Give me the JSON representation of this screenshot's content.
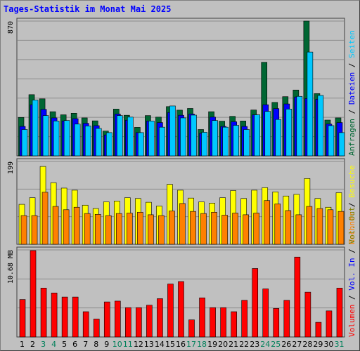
{
  "title": "Tages-Statistik im Monat Mai 2025",
  "chart_data": [
    {
      "type": "bar",
      "panel": "top",
      "ymax_label": "870",
      "ylim": [
        0,
        870
      ],
      "axis_labels": [
        {
          "text": "Anfragen",
          "color": "#006633"
        },
        {
          "text": " / ",
          "color": "#000000"
        },
        {
          "text": "Dateien",
          "color": "#0000ff"
        },
        {
          "text": " / ",
          "color": "#000000"
        },
        {
          "text": "Seiten",
          "color": "#00c8ff"
        }
      ],
      "series": [
        {
          "name": "Anfragen",
          "color": "#006633",
          "values": [
            248,
            395,
            368,
            285,
            265,
            275,
            245,
            226,
            160,
            302,
            262,
            184,
            260,
            250,
            318,
            295,
            306,
            170,
            285,
            224,
            255,
            225,
            296,
            604,
            345,
            382,
            425,
            870,
            402,
            231,
            245
          ]
        },
        {
          "name": "Dateien",
          "color": "#0000ff",
          "values": [
            190,
            330,
            300,
            245,
            225,
            240,
            210,
            195,
            135,
            270,
            230,
            150,
            225,
            215,
            280,
            262,
            270,
            145,
            250,
            190,
            220,
            190,
            265,
            330,
            305,
            335,
            380,
            370,
            365,
            205,
            215
          ]
        },
        {
          "name": "Seiten",
          "color": "#00c8ff",
          "values": [
            170,
            360,
            260,
            225,
            228,
            205,
            193,
            177,
            150,
            260,
            250,
            150,
            225,
            185,
            322,
            245,
            263,
            152,
            228,
            185,
            197,
            170,
            265,
            287,
            235,
            302,
            384,
            670,
            390,
            195,
            150
          ]
        }
      ]
    },
    {
      "type": "bar",
      "panel": "middle",
      "ymax_label": "199",
      "ylim": [
        0,
        199
      ],
      "axis_labels": [
        {
          "text": "Rechner",
          "color": "#ff8000"
        },
        {
          "text": " / ",
          "color": "#000000"
        },
        {
          "text": "Besuche",
          "color": "#ffff00"
        }
      ],
      "series": [
        {
          "name": "Besuche",
          "color": "#ffff00",
          "values": [
            96,
            112,
            187,
            148,
            135,
            130,
            94,
            86,
            102,
            104,
            112,
            110,
            101,
            92,
            144,
            130,
            111,
            102,
            99,
            112,
            129,
            110,
            130,
            136,
            126,
            116,
            120,
            158,
            110,
            89,
            124
          ]
        },
        {
          "name": "Rechner",
          "color": "#ff8000",
          "values": [
            69,
            69,
            125,
            91,
            83,
            89,
            74,
            72,
            69,
            74,
            75,
            77,
            71,
            69,
            80,
            98,
            79,
            74,
            77,
            70,
            75,
            71,
            75,
            105,
            97,
            81,
            71,
            91,
            86,
            83,
            79
          ]
        }
      ]
    },
    {
      "type": "bar",
      "panel": "bottom",
      "ymax_label": "10.68 MB",
      "ylim": [
        0,
        10.68
      ],
      "axis_labels": [
        {
          "text": "Volumen",
          "color": "#ff0000"
        },
        {
          "text": " / ",
          "color": "#000000"
        },
        {
          "text": "Vol. In",
          "color": "#0000ff"
        },
        {
          "text": " / ",
          "color": "#000000"
        },
        {
          "text": "Vol. Out",
          "color": "#808000"
        }
      ],
      "series": [
        {
          "name": "Volumen",
          "color": "#ff0000",
          "values": [
            4.6,
            10.6,
            6.0,
            5.4,
            4.9,
            4.9,
            3.1,
            2.2,
            4.3,
            4.4,
            3.6,
            3.6,
            3.9,
            4.7,
            6.5,
            6.8,
            2.1,
            4.8,
            3.6,
            3.6,
            3.1,
            4.5,
            8.4,
            5.9,
            3.5,
            4.5,
            9.8,
            5.5,
            1.8,
            3.2,
            6.0
          ]
        }
      ]
    }
  ],
  "days": [
    {
      "label": "1",
      "color": "#000000"
    },
    {
      "label": "2",
      "color": "#000000"
    },
    {
      "label": "3",
      "color": "#00805a"
    },
    {
      "label": "4",
      "color": "#00805a"
    },
    {
      "label": "5",
      "color": "#000000"
    },
    {
      "label": "6",
      "color": "#000000"
    },
    {
      "label": "7",
      "color": "#000000"
    },
    {
      "label": "8",
      "color": "#000000"
    },
    {
      "label": "9",
      "color": "#000000"
    },
    {
      "label": "10",
      "color": "#00805a"
    },
    {
      "label": "11",
      "color": "#00805a"
    },
    {
      "label": "12",
      "color": "#000000"
    },
    {
      "label": "13",
      "color": "#000000"
    },
    {
      "label": "14",
      "color": "#000000"
    },
    {
      "label": "15",
      "color": "#000000"
    },
    {
      "label": "16",
      "color": "#000000"
    },
    {
      "label": "17",
      "color": "#00805a"
    },
    {
      "label": "18",
      "color": "#00805a"
    },
    {
      "label": "19",
      "color": "#000000"
    },
    {
      "label": "20",
      "color": "#000000"
    },
    {
      "label": "21",
      "color": "#000000"
    },
    {
      "label": "22",
      "color": "#000000"
    },
    {
      "label": "23",
      "color": "#000000"
    },
    {
      "label": "24",
      "color": "#00805a"
    },
    {
      "label": "25",
      "color": "#00805a"
    },
    {
      "label": "26",
      "color": "#000000"
    },
    {
      "label": "27",
      "color": "#000000"
    },
    {
      "label": "28",
      "color": "#000000"
    },
    {
      "label": "29",
      "color": "#000000"
    },
    {
      "label": "30",
      "color": "#000000"
    },
    {
      "label": "31",
      "color": "#00805a"
    }
  ]
}
